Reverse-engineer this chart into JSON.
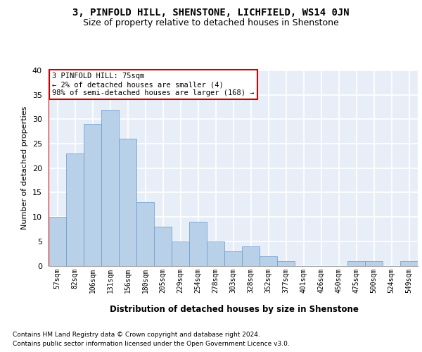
{
  "title": "3, PINFOLD HILL, SHENSTONE, LICHFIELD, WS14 0JN",
  "subtitle": "Size of property relative to detached houses in Shenstone",
  "xlabel": "Distribution of detached houses by size in Shenstone",
  "ylabel": "Number of detached properties",
  "categories": [
    "57sqm",
    "82sqm",
    "106sqm",
    "131sqm",
    "156sqm",
    "180sqm",
    "205sqm",
    "229sqm",
    "254sqm",
    "278sqm",
    "303sqm",
    "328sqm",
    "352sqm",
    "377sqm",
    "401sqm",
    "426sqm",
    "450sqm",
    "475sqm",
    "500sqm",
    "524sqm",
    "549sqm"
  ],
  "values": [
    10,
    23,
    29,
    32,
    26,
    13,
    8,
    5,
    9,
    5,
    3,
    4,
    2,
    1,
    0,
    0,
    0,
    1,
    1,
    0,
    1
  ],
  "bar_color": "#b8d0e8",
  "bar_edge_color": "#6699cc",
  "annotation_text": "3 PINFOLD HILL: 75sqm\n← 2% of detached houses are smaller (4)\n98% of semi-detached houses are larger (168) →",
  "indicator_line_color": "#cc0000",
  "ylim_max": 40,
  "yticks": [
    0,
    5,
    10,
    15,
    20,
    25,
    30,
    35,
    40
  ],
  "bg_color": "#e8eef8",
  "grid_color": "white",
  "footer_line1": "Contains HM Land Registry data © Crown copyright and database right 2024.",
  "footer_line2": "Contains public sector information licensed under the Open Government Licence v3.0."
}
